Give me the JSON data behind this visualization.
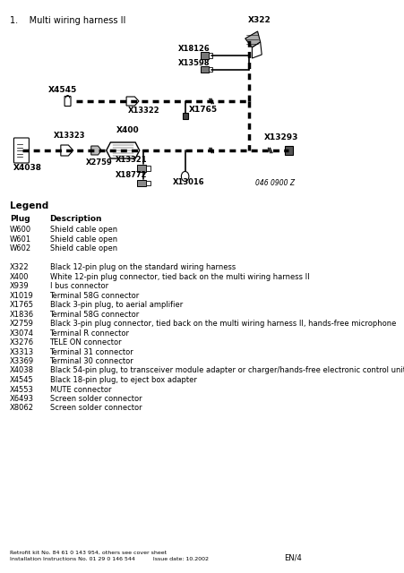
{
  "title": "1.    Multi wiring harness II",
  "bg_color": "#ffffff",
  "legend_title": "Legend",
  "legend_header": [
    "Plug",
    "Description"
  ],
  "legend_rows": [
    [
      "W600",
      "Shield cable open"
    ],
    [
      "W601",
      "Shield cable open"
    ],
    [
      "W602",
      "Shield cable open"
    ],
    [
      "",
      ""
    ],
    [
      "X322",
      "Black 12-pin plug on the standard wiring harness"
    ],
    [
      "X400",
      "White 12-pin plug connector, tied back on the multi wiring harness II"
    ],
    [
      "X939",
      "I bus connector"
    ],
    [
      "X1019",
      "Terminal 58G connector"
    ],
    [
      "X1765",
      "Black 3-pin plug, to aerial amplifier"
    ],
    [
      "X1836",
      "Terminal 58G connector"
    ],
    [
      "X2759",
      "Black 3-pin plug connector, tied back on the multi wiring harness II, hands-free microphone"
    ],
    [
      "X3074",
      "Terminal R connector"
    ],
    [
      "X3276",
      "TELE ON connector"
    ],
    [
      "X3313",
      "Terminal 31 connector"
    ],
    [
      "X3369",
      "Terminal 30 connector"
    ],
    [
      "X4038",
      "Black 54-pin plug, to transceiver module adapter or charger/hands-free electronic control unit"
    ],
    [
      "X4545",
      "Black 18-pin plug, to eject box adapter"
    ],
    [
      "X4553",
      "MUTE connector"
    ],
    [
      "X6493",
      "Screen solder connector"
    ],
    [
      "X8062",
      "Screen solder connector"
    ]
  ],
  "footer_left": "Retrofit kit No. 84 61 0 143 954, others see cover sheet\nInstallation Instructions No. 01 29 0 146 544          Issue date: 10.2002",
  "footer_right": "EN/4",
  "diagram_ref": "046 0900 Z"
}
